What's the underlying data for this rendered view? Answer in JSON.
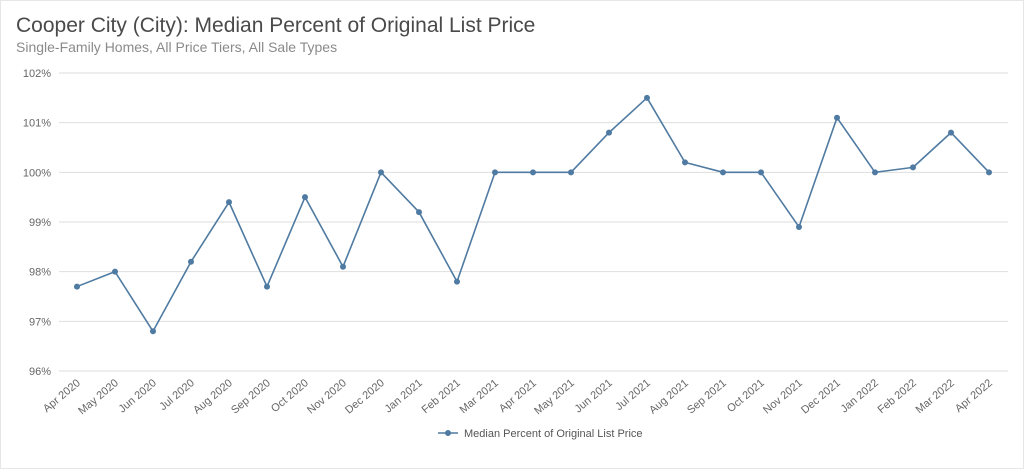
{
  "header": {
    "title": "Cooper City (City): Median Percent of Original List Price",
    "subtitle": "Single-Family Homes, All Price Tiers, All Sale Types"
  },
  "colors": {
    "series": "#4f7aa1",
    "grid": "#dedede",
    "text": "#666666"
  },
  "chart_data": {
    "type": "line",
    "title": "Cooper City (City): Median Percent of Original List Price",
    "subtitle": "Single-Family Homes, All Price Tiers, All Sale Types",
    "xlabel": "",
    "ylabel": "",
    "ylim": [
      96,
      102
    ],
    "yticks": [
      96,
      97,
      98,
      99,
      100,
      101,
      102
    ],
    "ytick_labels": [
      "96%",
      "97%",
      "98%",
      "99%",
      "100%",
      "101%",
      "102%"
    ],
    "grid": true,
    "legend_position": "bottom-center",
    "categories": [
      "Apr 2020",
      "May 2020",
      "Jun 2020",
      "Jul 2020",
      "Aug 2020",
      "Sep 2020",
      "Oct 2020",
      "Nov 2020",
      "Dec 2020",
      "Jan 2021",
      "Feb 2021",
      "Mar 2021",
      "Apr 2021",
      "May 2021",
      "Jun 2021",
      "Jul 2021",
      "Aug 2021",
      "Sep 2021",
      "Oct 2021",
      "Nov 2021",
      "Dec 2021",
      "Jan 2022",
      "Feb 2022",
      "Mar 2022",
      "Apr 2022"
    ],
    "series": [
      {
        "name": "Median Percent of Original List Price",
        "values": [
          97.7,
          98.0,
          96.8,
          98.2,
          99.4,
          97.7,
          99.5,
          98.1,
          100.0,
          99.2,
          97.8,
          100.0,
          100.0,
          100.0,
          100.8,
          101.5,
          100.2,
          100.0,
          100.0,
          98.9,
          101.1,
          100.0,
          100.1,
          100.8,
          100.0
        ]
      }
    ]
  }
}
